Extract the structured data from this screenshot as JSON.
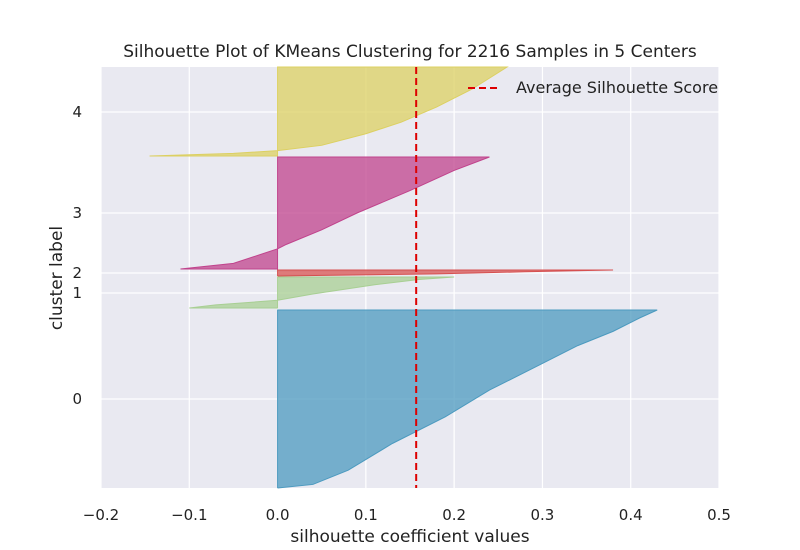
{
  "chart_data": {
    "type": "area",
    "title": "Silhouette Plot of KMeans Clustering for 2216 Samples in 5 Centers",
    "xlabel": "silhouette coefficient values",
    "ylabel": "cluster label",
    "xlim": [
      -0.2,
      0.5
    ],
    "x_ticks": [
      "−0.2",
      "−0.1",
      "0.0",
      "0.1",
      "0.2",
      "0.3",
      "0.4",
      "0.5"
    ],
    "x_tick_values": [
      -0.2,
      -0.1,
      0.0,
      0.1,
      0.2,
      0.3,
      0.4,
      0.5
    ],
    "y_tick_labels": [
      "0",
      "1",
      "2",
      "3",
      "4"
    ],
    "grid": true,
    "legend_position": "top-right",
    "average_silhouette_score": 0.157,
    "legend": {
      "label": "Average Silhouette Score",
      "color": "#dd0000"
    },
    "series": [
      {
        "cluster": "0",
        "color": "#4c9abf",
        "profile": [
          [
            0.0,
            0.43
          ],
          [
            0.045,
            0.41
          ],
          [
            0.12,
            0.38
          ],
          [
            0.2,
            0.34
          ],
          [
            0.3,
            0.3
          ],
          [
            0.45,
            0.24
          ],
          [
            0.6,
            0.19
          ],
          [
            0.75,
            0.13
          ],
          [
            0.9,
            0.08
          ],
          [
            0.98,
            0.04
          ],
          [
            1.0,
            0.0
          ]
        ]
      },
      {
        "cluster": "1",
        "color": "#a8cf93",
        "profile": [
          [
            0.0,
            0.2
          ],
          [
            0.08,
            0.16
          ],
          [
            0.25,
            0.11
          ],
          [
            0.55,
            0.04
          ],
          [
            0.75,
            0.0
          ],
          [
            0.9,
            -0.07
          ],
          [
            1.0,
            -0.1
          ]
        ]
      },
      {
        "cluster": "2",
        "color": "#d65050",
        "profile": [
          [
            0.0,
            0.38
          ],
          [
            0.3,
            0.28
          ],
          [
            0.65,
            0.18
          ],
          [
            1.0,
            0.0
          ]
        ]
      },
      {
        "cluster": "3",
        "color": "#c0438c",
        "profile": [
          [
            0.0,
            0.24
          ],
          [
            0.12,
            0.2
          ],
          [
            0.3,
            0.15
          ],
          [
            0.5,
            0.09
          ],
          [
            0.65,
            0.05
          ],
          [
            0.78,
            0.01
          ],
          [
            0.82,
            0.0
          ],
          [
            0.95,
            -0.05
          ],
          [
            1.0,
            -0.11
          ]
        ]
      },
      {
        "cluster": "4",
        "color": "#dcd062",
        "profile": [
          [
            0.0,
            0.26
          ],
          [
            0.25,
            0.22
          ],
          [
            0.45,
            0.18
          ],
          [
            0.62,
            0.14
          ],
          [
            0.75,
            0.1
          ],
          [
            0.88,
            0.05
          ],
          [
            0.94,
            0.0
          ],
          [
            0.97,
            -0.05
          ],
          [
            1.0,
            -0.145
          ]
        ]
      }
    ]
  }
}
